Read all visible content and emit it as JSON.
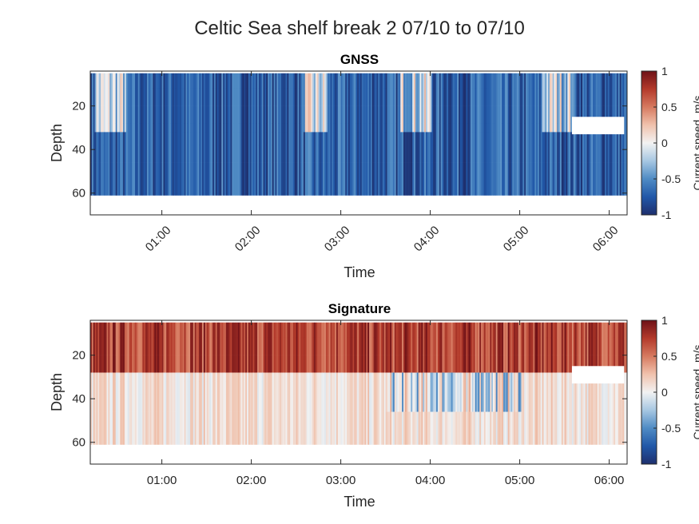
{
  "figure": {
    "title": "Celtic Sea shelf break 2 07/10 to 07/10"
  },
  "colorbar": {
    "label": "Current speed, m/s",
    "ticks": [
      "1",
      "0.5",
      "0",
      "-0.5",
      "-1"
    ],
    "colors": [
      "#1e2f6d",
      "#2158a8",
      "#4f8bc4",
      "#a7c7e2",
      "#f2f2f2",
      "#f0c2ad",
      "#d67a60",
      "#b33a2b",
      "#6e1117"
    ]
  },
  "chart_data": [
    {
      "type": "heatmap",
      "title": "GNSS",
      "xlabel": "Time",
      "ylabel": "Depth",
      "x_tick_labels": [
        "01:00",
        "02:00",
        "03:00",
        "04:00",
        "05:00",
        "06:00"
      ],
      "x_tick_rotation_deg": 45,
      "y_tick_labels": [
        "20",
        "40",
        "60"
      ],
      "y_ticks": [
        20,
        40,
        60
      ],
      "ylim": [
        70,
        4
      ],
      "data_depth_range": [
        5,
        61
      ],
      "x_range": [
        "00:12",
        "06:12"
      ],
      "clim": [
        -1,
        1
      ],
      "colormap": "diverging blue-white-red",
      "pattern": "predominantly negative speeds (-0.4 to -1) throughout; lighter/near-zero patches in upper 30 m around 00:15-00:35, 02:35-02:50, 03:40-04:00 and 05:15-05:35",
      "gap": {
        "time": [
          "05:35",
          "06:10"
        ],
        "depth": [
          25,
          33
        ]
      }
    },
    {
      "type": "heatmap",
      "title": "Signature",
      "xlabel": "Time",
      "ylabel": "Depth",
      "x_tick_labels": [
        "01:00",
        "02:00",
        "03:00",
        "04:00",
        "05:00",
        "06:00"
      ],
      "x_tick_rotation_deg": 0,
      "y_tick_labels": [
        "20",
        "40",
        "60"
      ],
      "y_ticks": [
        20,
        40,
        60
      ],
      "ylim": [
        70,
        4
      ],
      "data_depth_range": [
        5,
        61
      ],
      "x_range": [
        "00:12",
        "06:12"
      ],
      "clim": [
        -1,
        1
      ],
      "colormap": "diverging blue-white-red",
      "pattern": "strong positive speeds (0.5 to 1) in upper ~30 m; near-zero to slightly positive below; negative patches around 35-50 m between 03:30 and 05:00",
      "gap": {
        "time": [
          "05:35",
          "06:10"
        ],
        "depth": [
          25,
          33
        ]
      }
    }
  ]
}
